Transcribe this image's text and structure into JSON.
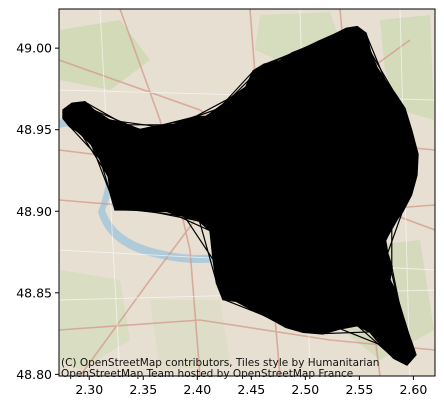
{
  "map": {
    "type": "geographic-plot",
    "basemap": "OpenStreetMap Humanitarian (HOT)",
    "attribution_lines": [
      "(C) OpenStreetMap contributors, Tiles style by Humanitarian",
      "OpenStreetMap Team hosted by OpenStreetMap France"
    ],
    "overlay_color": "#000000",
    "overlay_description": "Dense black road network covering a region of Paris suburbs",
    "x_axis": {
      "lim": [
        2.272,
        2.62
      ],
      "ticks": [
        2.3,
        2.35,
        2.4,
        2.45,
        2.5,
        2.55,
        2.6
      ],
      "tick_labels": [
        "2.30",
        "2.35",
        "2.40",
        "2.45",
        "2.50",
        "2.55",
        "2.60"
      ]
    },
    "y_axis": {
      "lim": [
        48.799,
        49.024
      ],
      "ticks": [
        48.8,
        48.85,
        48.9,
        48.95,
        49.0
      ],
      "tick_labels": [
        "48.80",
        "48.85",
        "48.90",
        "48.95",
        "49.00"
      ]
    },
    "region_outline": [
      [
        2.276,
        48.962
      ],
      [
        2.284,
        48.966
      ],
      [
        2.296,
        48.967
      ],
      [
        2.304,
        48.962
      ],
      [
        2.318,
        48.956
      ],
      [
        2.333,
        48.953
      ],
      [
        2.347,
        48.95
      ],
      [
        2.362,
        48.952
      ],
      [
        2.378,
        48.953
      ],
      [
        2.39,
        48.956
      ],
      [
        2.398,
        48.958
      ],
      [
        2.408,
        48.958
      ],
      [
        2.42,
        48.963
      ],
      [
        2.432,
        48.97
      ],
      [
        2.445,
        48.976
      ],
      [
        2.452,
        48.986
      ],
      [
        2.462,
        48.99
      ],
      [
        2.476,
        48.992
      ],
      [
        2.488,
        48.997
      ],
      [
        2.5,
        49.0
      ],
      [
        2.512,
        49.004
      ],
      [
        2.526,
        49.008
      ],
      [
        2.538,
        49.012
      ],
      [
        2.548,
        49.013
      ],
      [
        2.556,
        49.009
      ],
      [
        2.56,
        48.998
      ],
      [
        2.566,
        48.988
      ],
      [
        2.574,
        48.98
      ],
      [
        2.583,
        48.972
      ],
      [
        2.592,
        48.963
      ],
      [
        2.598,
        48.95
      ],
      [
        2.604,
        48.935
      ],
      [
        2.603,
        48.922
      ],
      [
        2.598,
        48.91
      ],
      [
        2.59,
        48.9
      ],
      [
        2.58,
        48.891
      ],
      [
        2.574,
        48.882
      ],
      [
        2.576,
        48.874
      ],
      [
        2.58,
        48.866
      ],
      [
        2.578,
        48.858
      ],
      [
        2.584,
        48.85
      ],
      [
        2.588,
        48.84
      ],
      [
        2.592,
        48.83
      ],
      [
        2.598,
        48.82
      ],
      [
        2.602,
        48.812
      ],
      [
        2.594,
        48.806
      ],
      [
        2.582,
        48.81
      ],
      [
        2.57,
        48.818
      ],
      [
        2.56,
        48.826
      ],
      [
        2.548,
        48.83
      ],
      [
        2.532,
        48.828
      ],
      [
        2.516,
        48.825
      ],
      [
        2.498,
        48.826
      ],
      [
        2.482,
        48.829
      ],
      [
        2.466,
        48.835
      ],
      [
        2.45,
        48.84
      ],
      [
        2.436,
        48.845
      ],
      [
        2.424,
        48.846
      ],
      [
        2.418,
        48.856
      ],
      [
        2.415,
        48.87
      ],
      [
        2.412,
        48.888
      ],
      [
        2.402,
        48.894
      ],
      [
        2.388,
        48.897
      ],
      [
        2.372,
        48.9
      ],
      [
        2.356,
        48.9
      ],
      [
        2.34,
        48.901
      ],
      [
        2.324,
        48.901
      ],
      [
        2.32,
        48.91
      ],
      [
        2.318,
        48.921
      ],
      [
        2.31,
        48.932
      ],
      [
        2.302,
        48.941
      ],
      [
        2.292,
        48.948
      ],
      [
        2.282,
        48.952
      ],
      [
        2.276,
        48.957
      ]
    ]
  }
}
